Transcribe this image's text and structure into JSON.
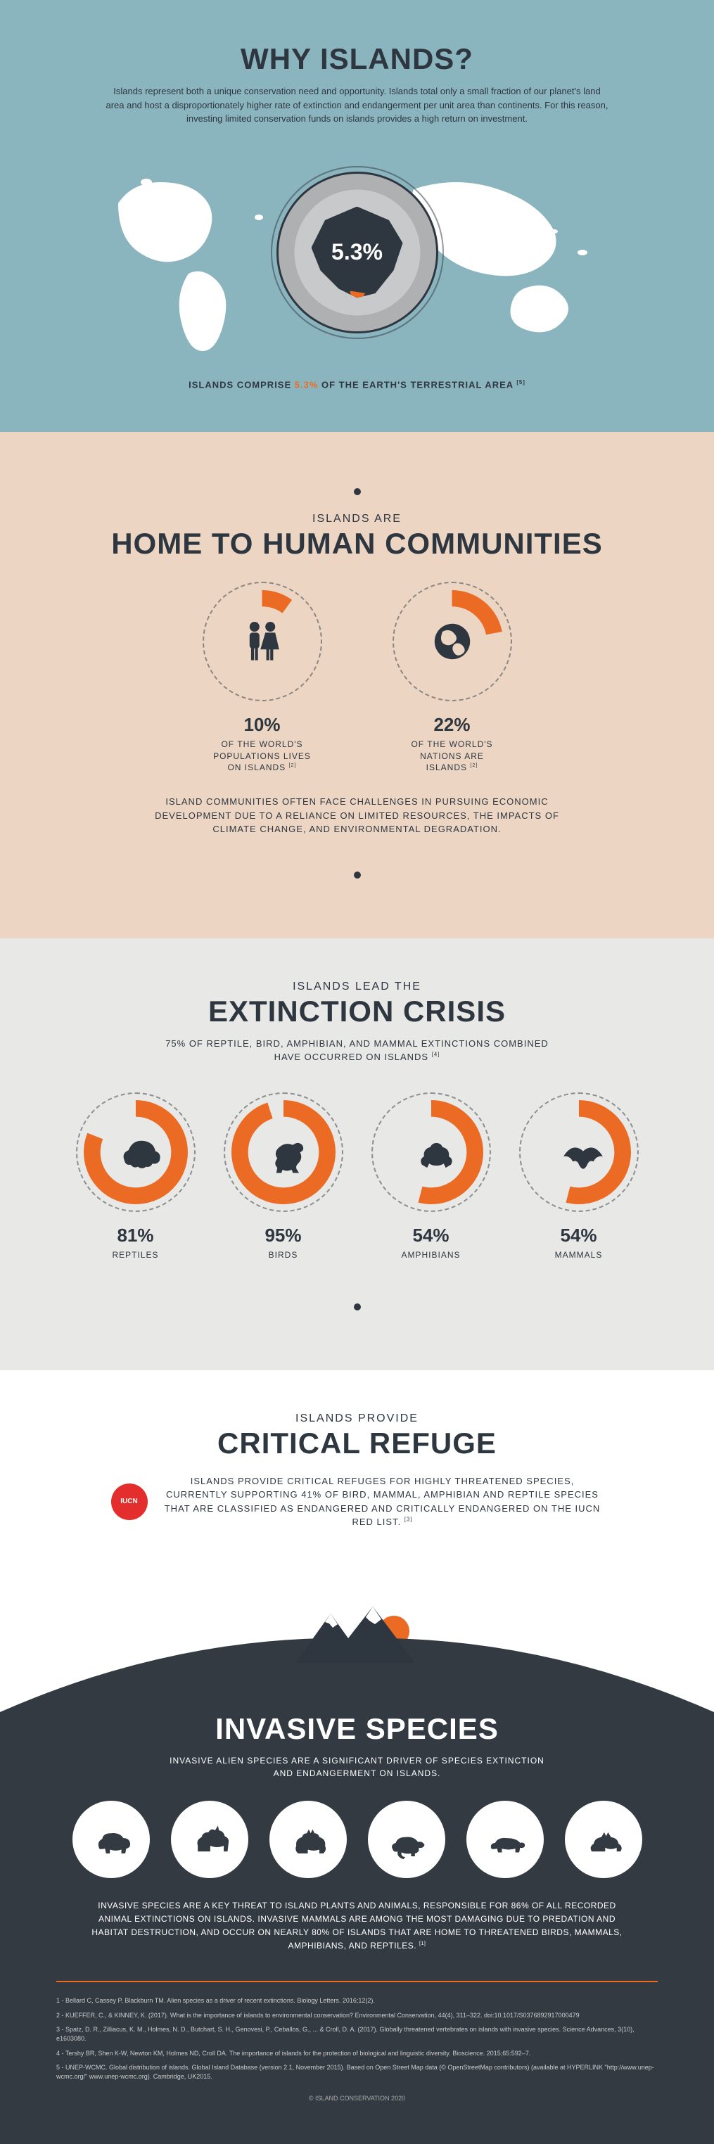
{
  "colors": {
    "accent": "#ec6b24",
    "dark": "#2e3640",
    "night": "#333a42",
    "section1_bg": "#8ab5be",
    "section2_bg": "#ecd6c3",
    "section3_bg": "#e8e8e6",
    "white": "#ffffff",
    "map_land": "#ffffff",
    "globe_light": "#c7c9cb",
    "globe_dark": "#aeb0b2",
    "red_badge": "#e42d2d"
  },
  "section1": {
    "title": "WHY ISLANDS?",
    "intro": "Islands represent both a unique conservation need and opportunity. Islands total only a small fraction of our planet's land area and host a disproportionately higher rate of extinction and endangerment per unit area than continents. For this reason, investing limited conservation funds on islands provides a high return on investment.",
    "globe_pct": "5.3%",
    "caption_pre": "ISLANDS COMPRISE ",
    "caption_accent": "5.3%",
    "caption_post": " OF THE EARTH'S TERRESTRIAL AREA ",
    "caption_ref": "[5]"
  },
  "section2": {
    "eyebrow": "ISLANDS ARE",
    "title": "HOME TO HUMAN COMMUNITIES",
    "stats": [
      {
        "pct": 10,
        "value": "10%",
        "label": "OF THE WORLD'S\nPOPULATIONS LIVES\nON ISLANDS",
        "ref": "[2]",
        "icon": "people"
      },
      {
        "pct": 22,
        "value": "22%",
        "label": "OF THE WORLD'S\nNATIONS ARE\nISLANDS",
        "ref": "[2]",
        "icon": "globe"
      }
    ],
    "body": "ISLAND COMMUNITIES OFTEN FACE CHALLENGES IN PURSUING ECONOMIC DEVELOPMENT DUE TO A RELIANCE ON LIMITED RESOURCES, THE IMPACTS OF CLIMATE CHANGE, AND ENVIRONMENTAL DEGRADATION."
  },
  "section3": {
    "eyebrow": "ISLANDS LEAD THE",
    "title": "EXTINCTION CRISIS",
    "subtitle": "75% OF REPTILE, BIRD, AMPHIBIAN, AND MAMMAL EXTINCTIONS COMBINED\nHAVE OCCURRED ON ISLANDS",
    "subtitle_ref": "[4]",
    "stats": [
      {
        "pct": 81,
        "value": "81%",
        "label": "REPTILES",
        "icon": "turtle"
      },
      {
        "pct": 95,
        "value": "95%",
        "label": "BIRDS",
        "icon": "dodo"
      },
      {
        "pct": 54,
        "value": "54%",
        "label": "AMPHIBIANS",
        "icon": "frog"
      },
      {
        "pct": 54,
        "value": "54%",
        "label": "MAMMALS",
        "icon": "bat"
      }
    ]
  },
  "section4": {
    "eyebrow": "ISLANDS PROVIDE",
    "title": "CRITICAL REFUGE",
    "body": "ISLANDS PROVIDE CRITICAL REFUGES FOR HIGHLY THREATENED SPECIES, CURRENTLY SUPPORTING 41% OF BIRD, MAMMAL, AMPHIBIAN AND REPTILE SPECIES THAT ARE CLASSIFIED AS ENDANGERED AND CRITICALLY ENDANGERED ON THE IUCN RED LIST.",
    "body_ref": "[3]"
  },
  "section5": {
    "title": "INVASIVE SPECIES",
    "intro": "INVASIVE ALIEN SPECIES ARE A SIGNIFICANT DRIVER OF SPECIES EXTINCTION AND ENDANGERMENT ON ISLANDS.",
    "animals": [
      "pig",
      "goat",
      "cat",
      "rat",
      "mongoose",
      "fox"
    ],
    "body": "INVASIVE SPECIES ARE A KEY THREAT TO ISLAND PLANTS AND ANIMALS, RESPONSIBLE FOR 86% OF ALL RECORDED ANIMAL EXTINCTIONS ON ISLANDS. INVASIVE MAMMALS ARE AMONG THE MOST DAMAGING DUE TO PREDATION AND HABITAT DESTRUCTION, AND OCCUR ON NEARLY 80% OF ISLANDS THAT ARE HOME TO THREATENED BIRDS, MAMMALS, AMPHIBIANS, AND REPTILES.",
    "body_ref": "[1]",
    "references": [
      "1 - Bellard C, Cassey P, Blackburn TM. Alien species as a driver of recent extinctions. Biology Letters. 2016;12(2).",
      "2 - KUEFFER, C., & KINNEY, K. (2017). What is the importance of islands to environmental conservation? Environmental Conservation, 44(4), 311–322. doi:10.1017/S0376892917000479",
      "3 - Spatz, D. R., Zilliacus, K. M., Holmes, N. D., Butchart, S. H., Genovesi, P., Ceballos, G., ... & Croll, D. A. (2017). Globally threatened vertebrates on islands with invasive species. Science Advances, 3(10), e1603080.",
      "4 - Tershy BR, Shen K-W, Newton KM, Holmes ND, Croll DA. The importance of islands for the protection of biological and linguistic diversity. Bioscience. 2015;65:592–7.",
      "5 - UNEP-WCMC. Global distribution of islands. Global Island Database (version 2.1, November 2015). Based on Open Street Map data (© OpenStreetMap contributors) (available at  HYPERLINK \"http://www.unep-wcmc.org/\" www.unep-wcmc.org). Cambridge, UK2015."
    ],
    "copyright": "© ISLAND CONSERVATION 2020"
  }
}
